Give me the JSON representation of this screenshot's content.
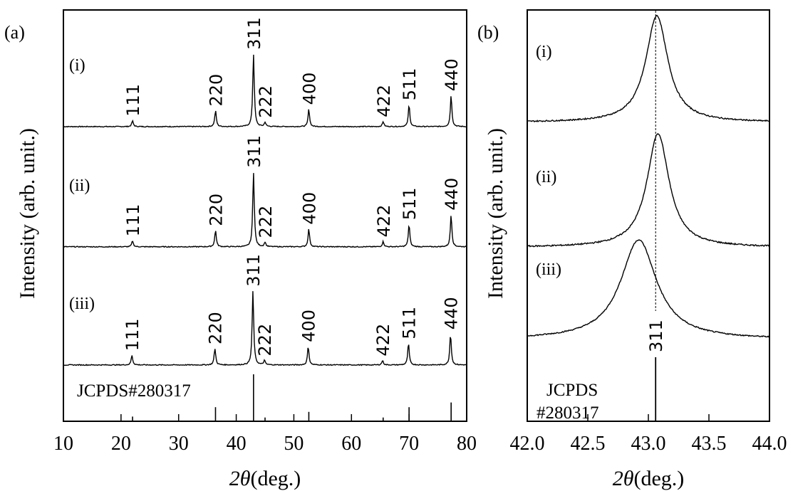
{
  "chart_data": [
    {
      "panel_label": "(a)",
      "type": "line",
      "xlabel_symbol": "2θ",
      "xlabel_unit": "(deg.)",
      "ylabel": "Intensity (arb. unit.)",
      "xlim": [
        10,
        80
      ],
      "x_ticks": [
        "10",
        "20",
        "30",
        "40",
        "50",
        "60",
        "70",
        "80"
      ],
      "baseline": 0.04,
      "noise": 0.012,
      "series": [
        {
          "name": "(i)",
          "peaks": [
            {
              "hkl": "111",
              "x": 22.0,
              "height": 0.08
            },
            {
              "hkl": "220",
              "x": 36.4,
              "height": 0.22
            },
            {
              "hkl": "311",
              "x": 43.0,
              "height": 1.0
            },
            {
              "hkl": "222",
              "x": 45.0,
              "height": 0.06
            },
            {
              "hkl": "400",
              "x": 52.6,
              "height": 0.24
            },
            {
              "hkl": "422",
              "x": 65.5,
              "height": 0.07
            },
            {
              "hkl": "511",
              "x": 70.0,
              "height": 0.3
            },
            {
              "hkl": "440",
              "x": 77.3,
              "height": 0.43
            }
          ]
        },
        {
          "name": "(ii)",
          "peaks": [
            {
              "hkl": "111",
              "x": 22.0,
              "height": 0.08
            },
            {
              "hkl": "220",
              "x": 36.4,
              "height": 0.22
            },
            {
              "hkl": "311",
              "x": 43.0,
              "height": 1.0
            },
            {
              "hkl": "222",
              "x": 45.0,
              "height": 0.06
            },
            {
              "hkl": "400",
              "x": 52.6,
              "height": 0.24
            },
            {
              "hkl": "422",
              "x": 65.5,
              "height": 0.07
            },
            {
              "hkl": "511",
              "x": 70.0,
              "height": 0.3
            },
            {
              "hkl": "440",
              "x": 77.3,
              "height": 0.43
            }
          ]
        },
        {
          "name": "(iii)",
          "peaks": [
            {
              "hkl": "111",
              "x": 21.9,
              "height": 0.13
            },
            {
              "hkl": "220",
              "x": 36.3,
              "height": 0.22
            },
            {
              "hkl": "311",
              "x": 42.9,
              "height": 1.0
            },
            {
              "hkl": "222",
              "x": 44.9,
              "height": 0.06
            },
            {
              "hkl": "400",
              "x": 52.5,
              "height": 0.25
            },
            {
              "hkl": "422",
              "x": 65.4,
              "height": 0.06
            },
            {
              "hkl": "511",
              "x": 69.9,
              "height": 0.29
            },
            {
              "hkl": "440",
              "x": 77.2,
              "height": 0.42
            }
          ]
        }
      ],
      "reference": {
        "label": "JCPDS#280317",
        "lines": [
          {
            "x": 22.0,
            "intensity": 0.1
          },
          {
            "x": 36.4,
            "intensity": 0.3
          },
          {
            "x": 43.0,
            "intensity": 1.0
          },
          {
            "x": 45.0,
            "intensity": 0.08
          },
          {
            "x": 52.6,
            "intensity": 0.2
          },
          {
            "x": 65.5,
            "intensity": 0.08
          },
          {
            "x": 70.0,
            "intensity": 0.3
          },
          {
            "x": 77.3,
            "intensity": 0.4
          }
        ]
      }
    },
    {
      "panel_label": "(b)",
      "type": "line",
      "xlabel_symbol": "2θ",
      "xlabel_unit": "(deg.)",
      "ylabel": "Intensity (arb. unit.)",
      "xlim": [
        42.0,
        44.0
      ],
      "x_ticks": [
        "42.0",
        "42.5",
        "43.0",
        "43.5",
        "44.0"
      ],
      "series": [
        {
          "name": "(i)",
          "peak_center": 43.07,
          "fwhm": 0.22,
          "baseline": 0.04
        },
        {
          "name": "(ii)",
          "peak_center": 43.08,
          "fwhm": 0.22,
          "baseline": 0.04
        },
        {
          "name": "(iii)",
          "peak_center": 42.92,
          "fwhm": 0.36,
          "baseline": 0.05
        }
      ],
      "guide_line_x": 43.06,
      "reference": {
        "label_line1": "JCPDS",
        "label_line2": "#280317",
        "hkl": "311",
        "x": 43.06
      }
    }
  ]
}
